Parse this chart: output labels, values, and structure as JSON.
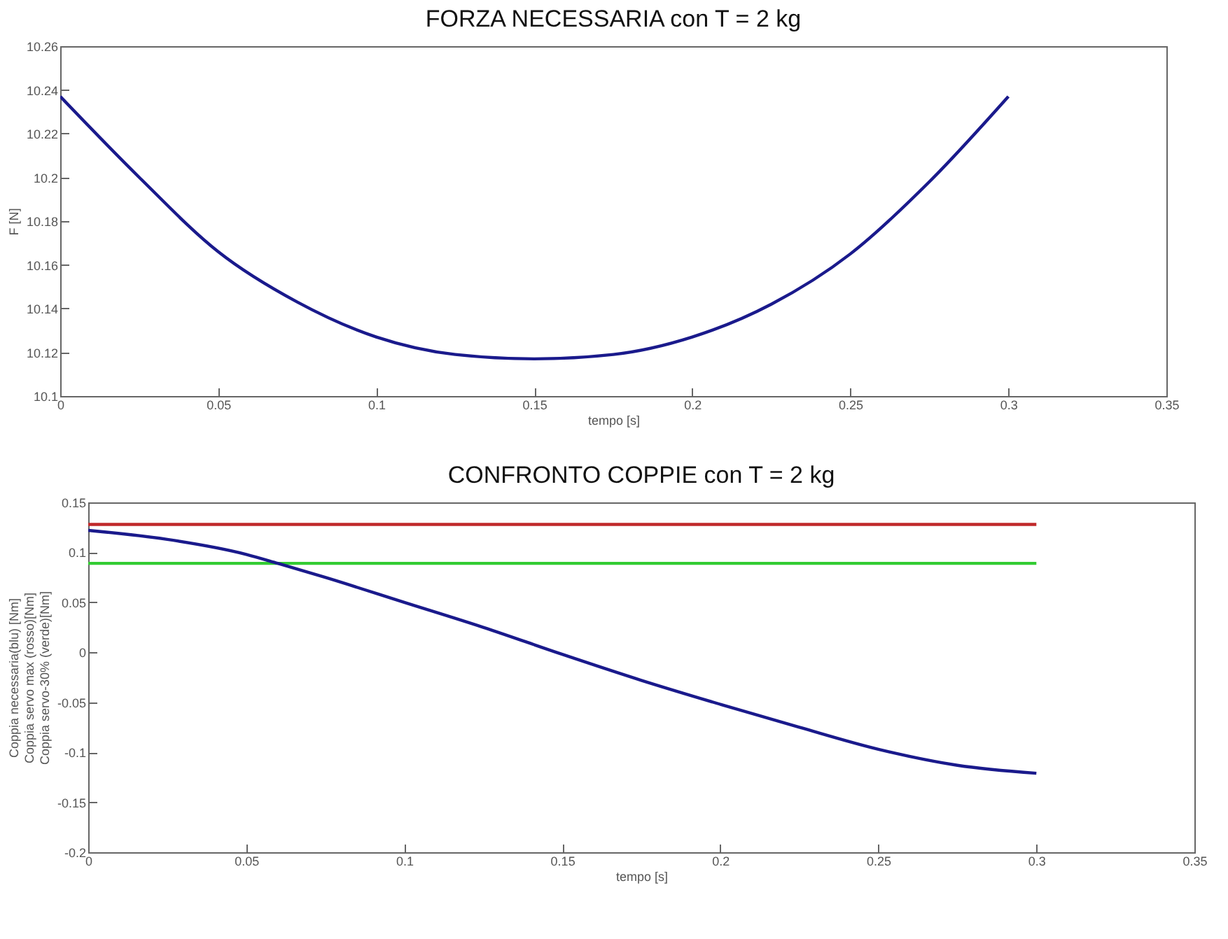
{
  "chart_data": [
    {
      "type": "line",
      "title": "FORZA NECESSARIA con T = 2 kg",
      "xlabel": "tempo [s]",
      "ylabel": "F [N]",
      "xlim": [
        0,
        0.35
      ],
      "xticks": [
        0,
        0.05,
        0.1,
        0.15,
        0.2,
        0.25,
        0.3,
        0.35
      ],
      "ylim": [
        10.1,
        10.26
      ],
      "yticks": [
        10.1,
        10.12,
        10.14,
        10.16,
        10.18,
        10.2,
        10.22,
        10.24,
        10.26
      ],
      "grid": false,
      "series": [
        {
          "color": "#1a1a8c",
          "x": [
            0,
            0.025,
            0.05,
            0.075,
            0.1,
            0.125,
            0.15,
            0.175,
            0.2,
            0.225,
            0.25,
            0.275,
            0.3
          ],
          "values": [
            10.237,
            10.2,
            10.166,
            10.143,
            10.127,
            10.119,
            10.117,
            10.119,
            10.127,
            10.142,
            10.165,
            10.198,
            10.237
          ]
        }
      ]
    },
    {
      "type": "line",
      "title": "CONFRONTO COPPIE con T = 2 kg",
      "xlabel": "tempo [s]",
      "ylabel": "Coppia necessaria(blu) [Nm]\nCoppia servo max (rosso)[Nm]\nCoppia servo-30% (verde)[Nm]",
      "xlim": [
        0,
        0.35
      ],
      "xticks": [
        0,
        0.05,
        0.1,
        0.15,
        0.2,
        0.25,
        0.3,
        0.35
      ],
      "ylim": [
        -0.2,
        0.15
      ],
      "yticks": [
        -0.2,
        -0.15,
        -0.1,
        -0.05,
        0,
        0.05,
        0.1,
        0.15
      ],
      "grid": false,
      "series": [
        {
          "color": "#c0282a",
          "x": [
            0,
            0.3
          ],
          "values": [
            0.128,
            0.128
          ]
        },
        {
          "color": "#33cc33",
          "x": [
            0,
            0.3
          ],
          "values": [
            0.089,
            0.089
          ]
        },
        {
          "color": "#1a1a8c",
          "x": [
            0,
            0.025,
            0.05,
            0.06,
            0.075,
            0.1,
            0.125,
            0.15,
            0.175,
            0.2,
            0.225,
            0.25,
            0.275,
            0.3
          ],
          "values": [
            0.122,
            0.113,
            0.098,
            0.089,
            0.075,
            0.05,
            0.025,
            -0.002,
            -0.028,
            -0.052,
            -0.075,
            -0.097,
            -0.113,
            -0.121
          ]
        }
      ]
    }
  ]
}
